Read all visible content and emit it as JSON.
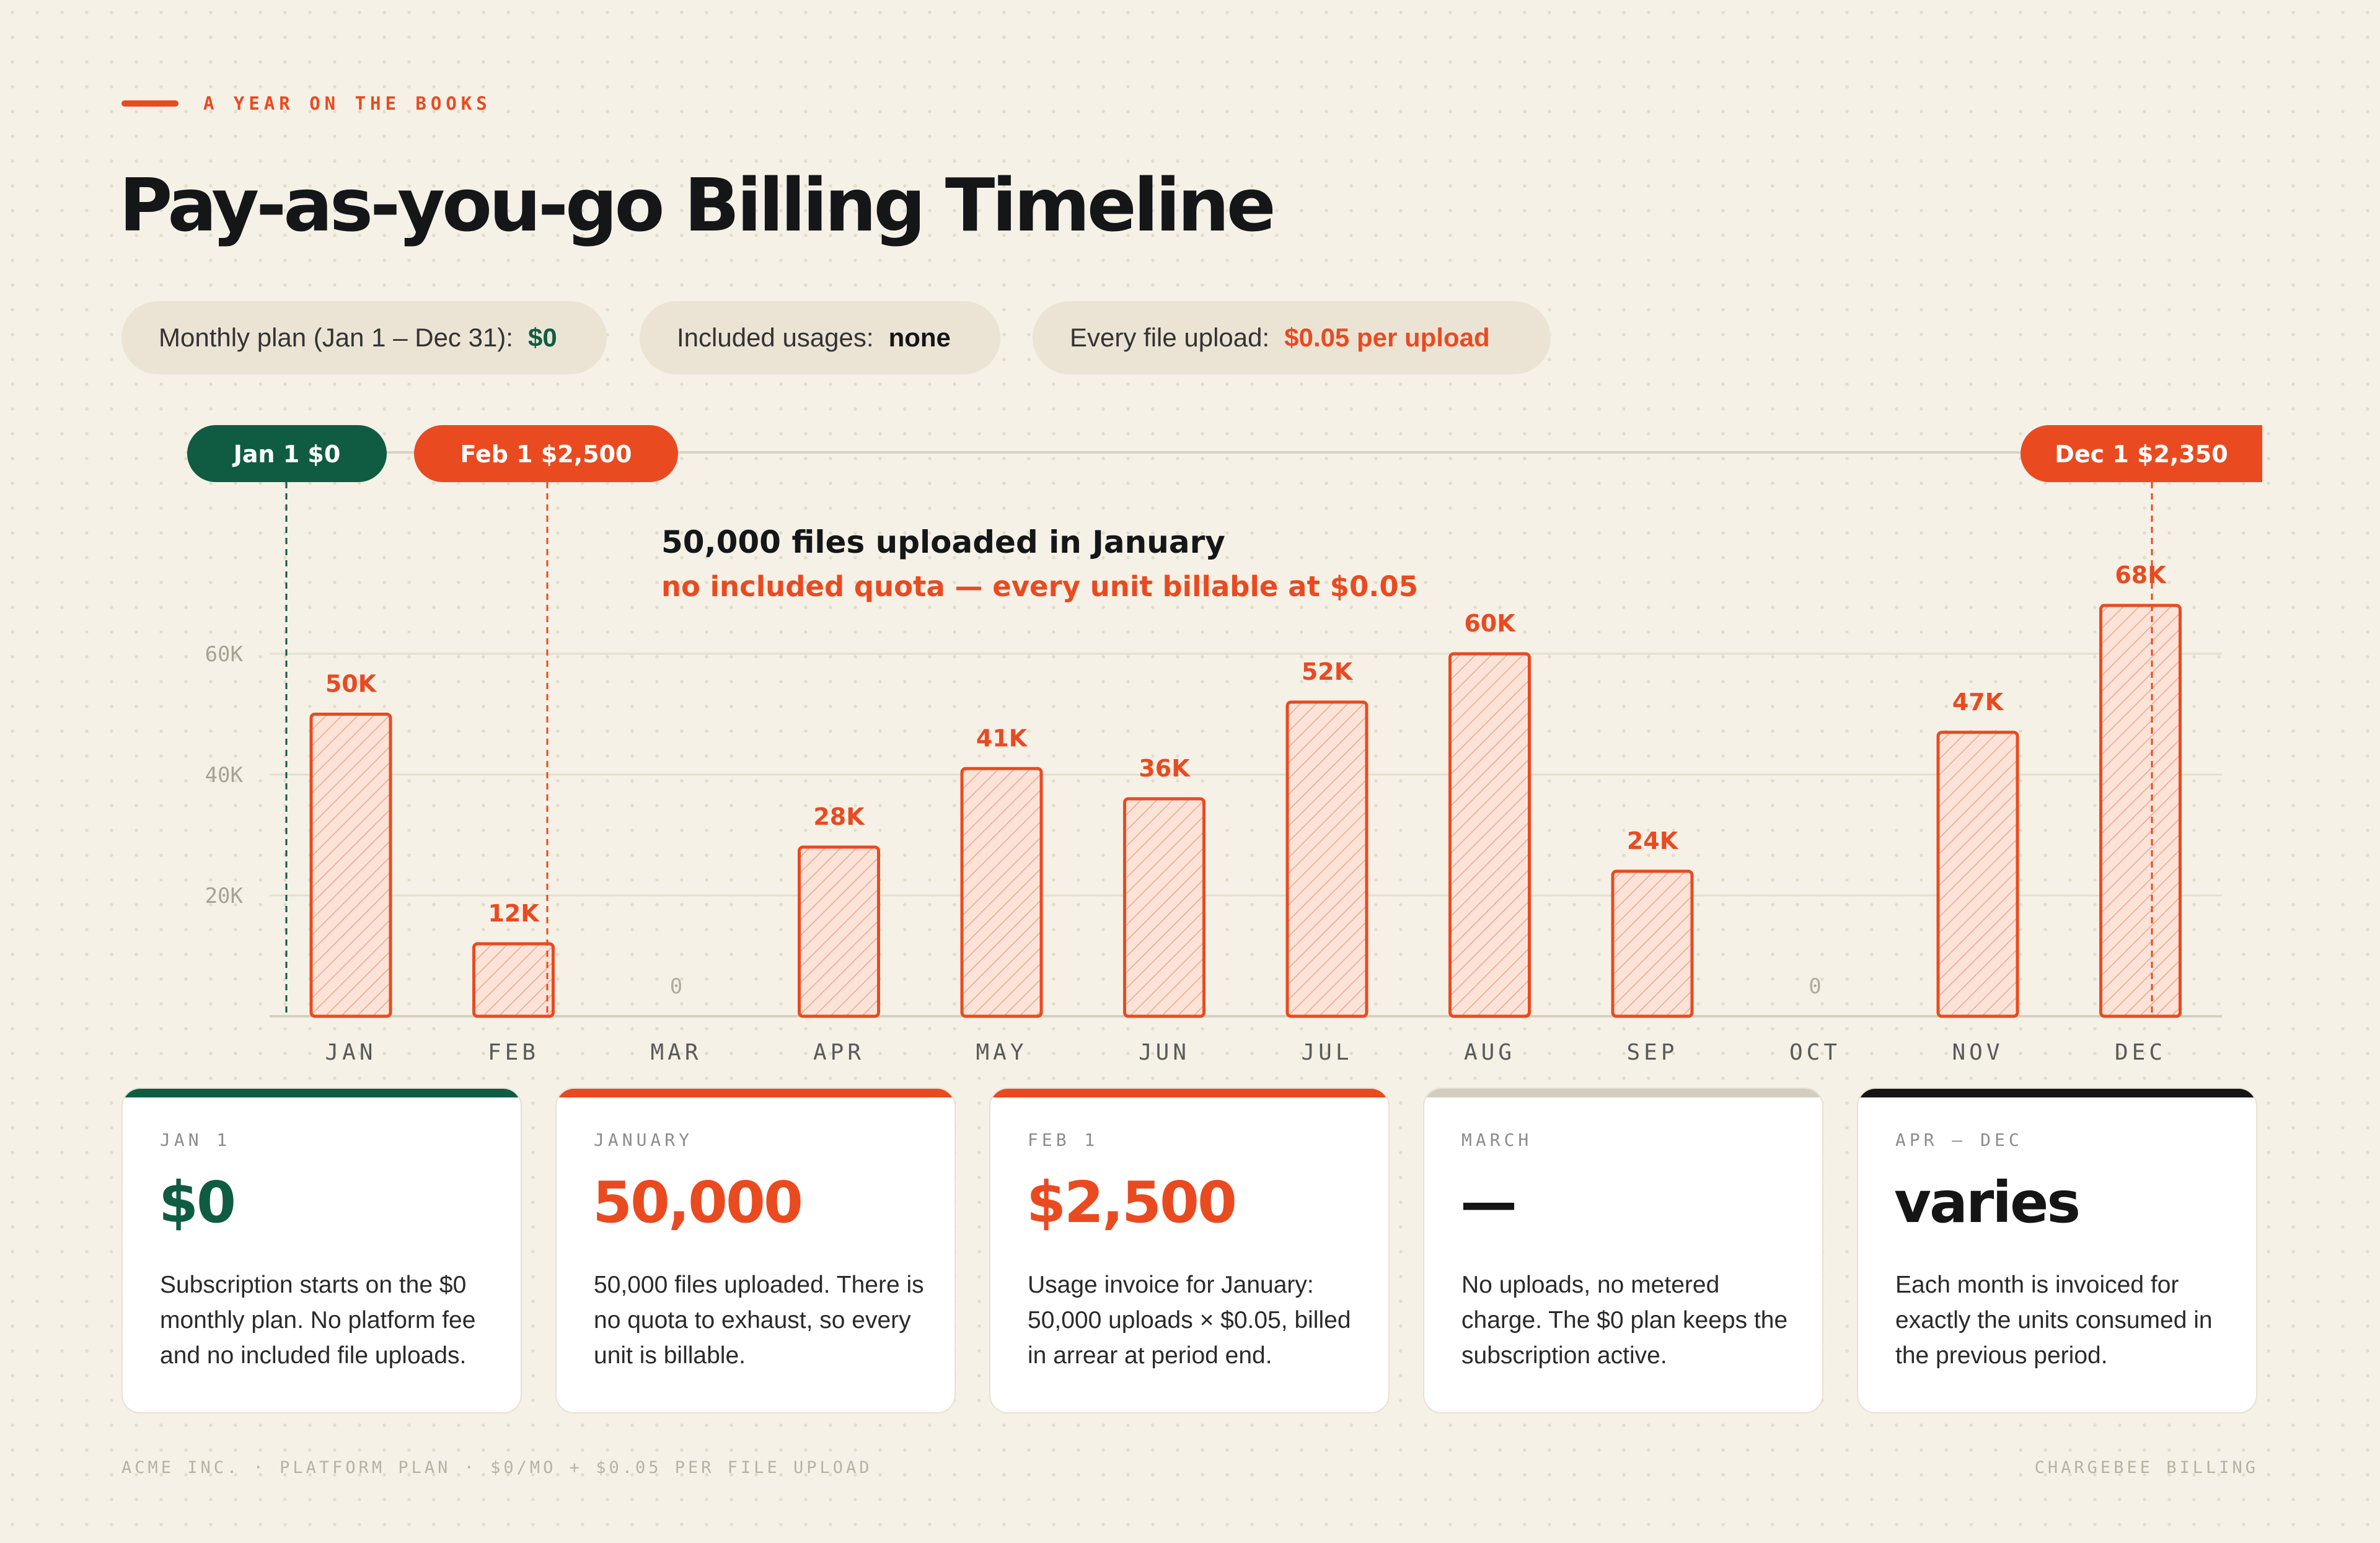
{
  "header": {
    "eyebrow": "A YEAR ON THE BOOKS",
    "title": "Pay-as-you-go Billing Timeline"
  },
  "pills": [
    {
      "label": "Monthly plan (Jan 1 – Dec 31):",
      "value": "$0",
      "color": "#0f5c42"
    },
    {
      "label": "Included usages:",
      "value": "none",
      "color": "#151515"
    },
    {
      "label": "Every file upload:",
      "value": "$0.05 per upload",
      "color": "#ea4a20"
    }
  ],
  "markers": [
    {
      "label": "Jan 1 $0",
      "month": "JAN",
      "color": "#0f5c42"
    },
    {
      "label": "Feb 1 $2,500",
      "month": "FEB",
      "color": "#ea4a20"
    },
    {
      "label": "Dec 1 $2,350",
      "month": "DEC",
      "color": "#ea4a20"
    }
  ],
  "annotation": {
    "line1": "50,000 files uploaded in January",
    "line2": "no included quota — every unit billable at $0.05"
  },
  "chart_data": {
    "type": "bar",
    "categories": [
      "JAN",
      "FEB",
      "MAR",
      "APR",
      "MAY",
      "JUN",
      "JUL",
      "AUG",
      "SEP",
      "OCT",
      "NOV",
      "DEC"
    ],
    "values": [
      50000,
      12000,
      0,
      28000,
      41000,
      36000,
      52000,
      60000,
      24000,
      0,
      47000,
      68000
    ],
    "data_labels": [
      "50K",
      "12K",
      "0",
      "28K",
      "41K",
      "36K",
      "52K",
      "60K",
      "24K",
      "0",
      "47K",
      "68K"
    ],
    "yticks": [
      20000,
      40000,
      60000
    ],
    "ytick_labels": [
      "20K",
      "40K",
      "60K"
    ],
    "ylim": [
      0,
      80000
    ],
    "grid": true,
    "colors": {
      "bar_stroke": "#ea4a20",
      "bar_fill": "#fbe3d8",
      "label": "#ea4a20",
      "zero_label": "#b0aa9c"
    }
  },
  "cards": [
    {
      "kicker": "JAN 1",
      "value": "$0",
      "desc": "Subscription starts on the $0 monthly plan. No platform fee and no included file uploads.",
      "accent": "#0f5c42",
      "value_color": "#0f5c42"
    },
    {
      "kicker": "JANUARY",
      "value": "50,000",
      "desc": "50,000 files uploaded. There is no quota to exhaust, so every unit is billable.",
      "accent": "#ea4a20",
      "value_color": "#ea4a20"
    },
    {
      "kicker": "FEB 1",
      "value": "$2,500",
      "desc": "Usage invoice for January: 50,000 uploads × $0.05, billed in arrear at period end.",
      "accent": "#ea4a20",
      "value_color": "#ea4a20"
    },
    {
      "kicker": "MARCH",
      "value": "—",
      "desc": "No uploads, no metered charge. The $0 plan keeps the subscription active.",
      "accent": "#d3cdbf",
      "value_color": "#151515"
    },
    {
      "kicker": "APR – DEC",
      "value": "varies",
      "desc": "Each month is invoiced for exactly the units consumed in the previous period.",
      "accent": "#151515",
      "value_color": "#151515"
    }
  ],
  "footer": {
    "left": "ACME INC. · PLATFORM PLAN · $0/MO + $0.05 PER FILE UPLOAD",
    "right": "CHARGEBEE BILLING"
  }
}
